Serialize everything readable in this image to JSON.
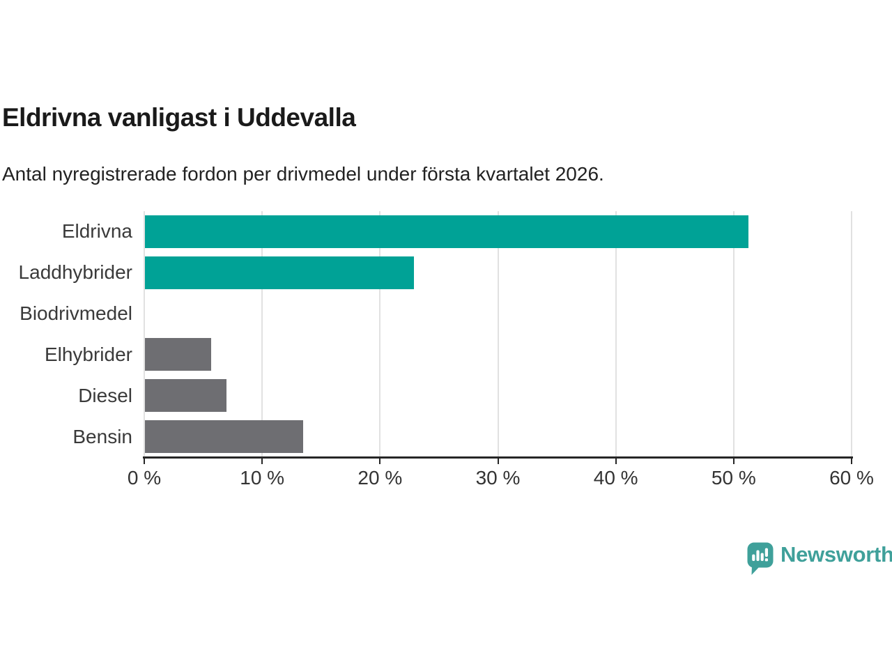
{
  "header": {
    "title": "Eldrivna vanligast i Uddevalla",
    "subtitle": "Antal nyregistrerade fordon per drivmedel under första kvartalet 2026."
  },
  "chart_data": {
    "type": "bar",
    "orientation": "horizontal",
    "title": "Eldrivna vanligast i Uddevalla",
    "subtitle": "Antal nyregistrerade fordon per drivmedel under första kvartalet 2026.",
    "categories": [
      "Eldrivna",
      "Laddhybrider",
      "Biodrivmedel",
      "Elhybrider",
      "Diesel",
      "Bensin"
    ],
    "values": [
      51.2,
      22.8,
      0,
      5.6,
      6.9,
      13.4
    ],
    "unit": "%",
    "xlim": [
      0,
      60
    ],
    "x_ticks": [
      0,
      10,
      20,
      30,
      40,
      50,
      60
    ],
    "x_tick_labels": [
      "0 %",
      "10 %",
      "20 %",
      "30 %",
      "40 %",
      "50 %",
      "60 %"
    ],
    "grid": true,
    "legend": false,
    "bar_colors": [
      "#00a296",
      "#00a296",
      "#6e6e72",
      "#6e6e72",
      "#6e6e72",
      "#6e6e72"
    ]
  },
  "colors": {
    "highlight": "#00a296",
    "neutral": "#6e6e72",
    "gridline": "#e1e1e1",
    "axis": "#262626",
    "tick_text": "#333333",
    "label_text": "#3a3a3a",
    "logo": "#3fa09a"
  },
  "branding": {
    "logo_text": "Newsworthy",
    "logo_icon": "newsworthy-speech-bubble-chart-icon"
  }
}
